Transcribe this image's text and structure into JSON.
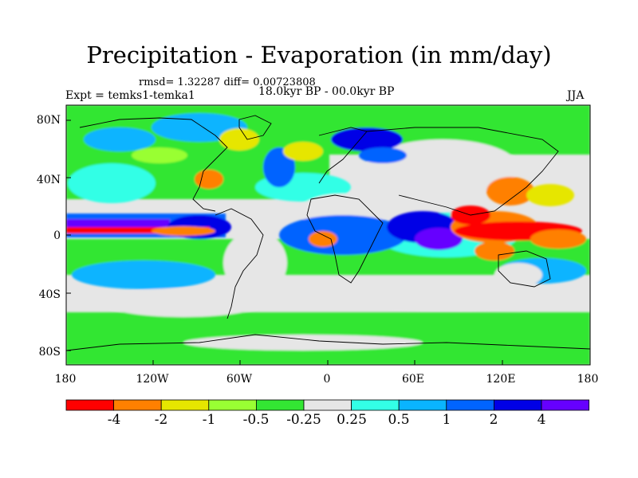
{
  "title": "Precipitation - Evaporation (in mm/day)",
  "stats": "rmsd= 1.32287 diff= 0.00723808",
  "experiment": "Expt = temks1-temka1",
  "period": "18.0kyr BP - 00.0kyr BP",
  "season": "JJA",
  "lat_labels": [
    "80N",
    "40N",
    "0",
    "40S",
    "80S"
  ],
  "lon_labels": [
    "180",
    "120W",
    "60W",
    "0",
    "60E",
    "120E",
    "180"
  ],
  "colorbar": {
    "colors": [
      "#ff0000",
      "#ff8000",
      "#e6e600",
      "#99ff33",
      "#33e633",
      "#e6e6e6",
      "#33ffe6",
      "#0ab4ff",
      "#0064ff",
      "#0000e6",
      "#6600ff"
    ],
    "labels": [
      "-4",
      "-2",
      "-1",
      "-0.5",
      "-0.25",
      "0.25",
      "0.5",
      "1",
      "2",
      "4"
    ]
  },
  "colors": {
    "ocean_background": "#e6e6e6",
    "coastline": "#000000"
  }
}
